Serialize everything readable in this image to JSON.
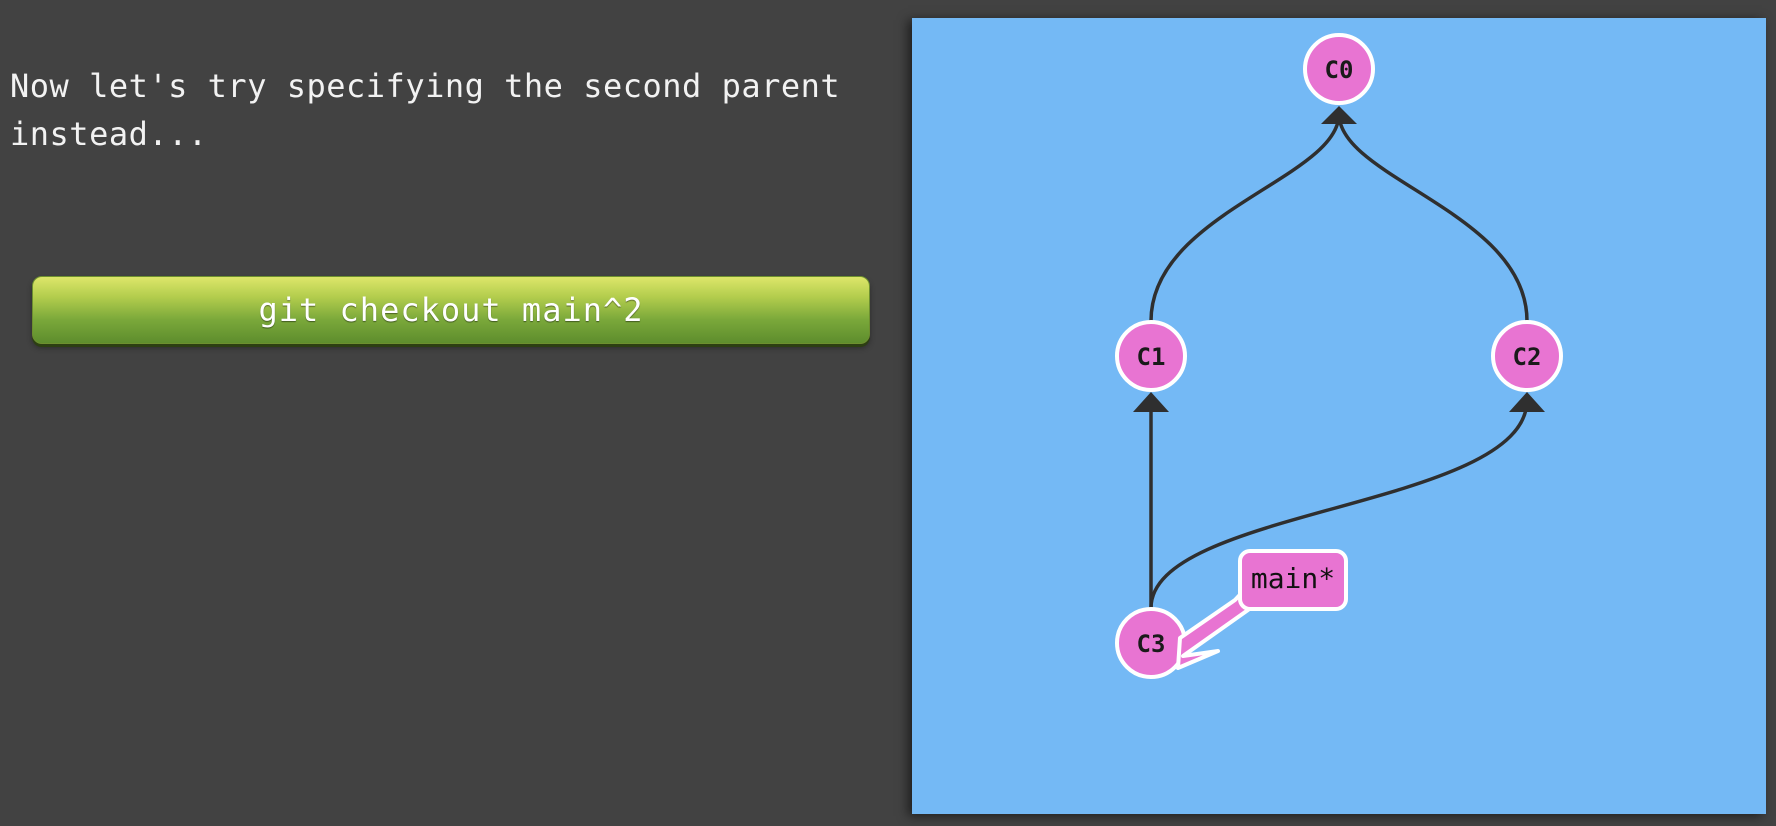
{
  "explanation": {
    "line1": "Now let's try specifying the second parent",
    "line2": "instead..."
  },
  "command": {
    "label": "git checkout main^2"
  },
  "graph": {
    "background": "#74b9f5",
    "commit_color": "#e874d2",
    "edge_color": "#2f2f2f",
    "commits": [
      {
        "id": "C0",
        "parents": []
      },
      {
        "id": "C1",
        "parents": [
          "C0"
        ]
      },
      {
        "id": "C2",
        "parents": [
          "C0"
        ]
      },
      {
        "id": "C3",
        "parents": [
          "C1",
          "C2"
        ]
      }
    ],
    "branch": {
      "label": "main*",
      "target": "C3"
    }
  }
}
